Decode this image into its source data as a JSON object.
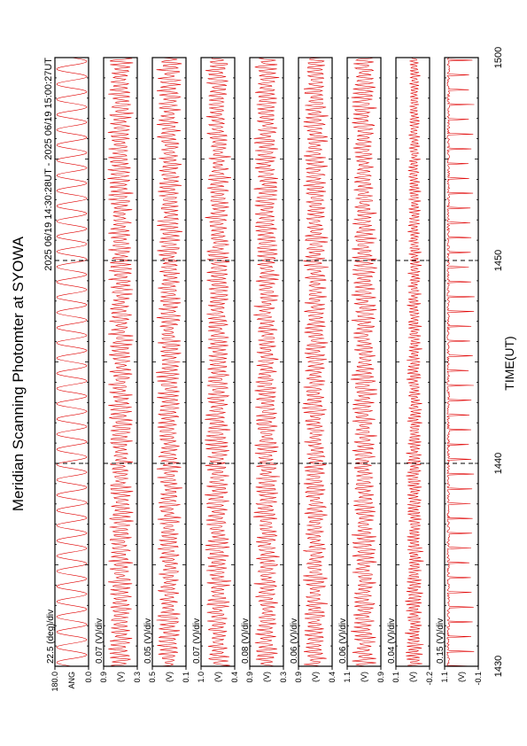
{
  "header": {
    "title": "Meridian Scanning Photomter at SYOWA",
    "time_range": "2025 06/19 14:30:28UT - 2025 06/19 15:00:27UT"
  },
  "time_axis": {
    "xlabel": "TIME(UT)",
    "xlim": [
      1430,
      1500
    ],
    "xticks": [
      1430,
      1440,
      1450,
      1500
    ]
  },
  "chart_data": [
    {
      "type": "line",
      "scale_label": "22.5 (deg)/div",
      "ylabel": "ANG",
      "ylim": [
        0,
        180
      ],
      "yticks": [
        {
          "value": 0,
          "label": "0.0"
        },
        {
          "value": 180,
          "label": "180.0"
        }
      ],
      "color": "#e00000"
    },
    {
      "type": "line",
      "scale_label": "0.07 (V)/div",
      "ylabel": "(V)",
      "ylim": [
        0.3,
        0.9
      ],
      "yticks": [
        0.3,
        0.9
      ],
      "color": "#e00000"
    },
    {
      "type": "line",
      "scale_label": "0.05 (V)/div",
      "ylabel": "(V)",
      "ylim": [
        0.1,
        0.5
      ],
      "yticks": [
        0.1,
        0.5
      ],
      "color": "#e00000"
    },
    {
      "type": "line",
      "scale_label": "0.07 (V)/div",
      "ylabel": "(V)",
      "ylim": [
        0.4,
        1.0
      ],
      "yticks": [
        0.4,
        {
          "value": 1,
          "label": "1.0"
        }
      ],
      "color": "#e00000"
    },
    {
      "type": "line",
      "scale_label": "0.08 (V)/div",
      "ylabel": "(V)",
      "ylim": [
        0.3,
        0.9
      ],
      "yticks": [
        0.3,
        0.9
      ],
      "color": "#e00000"
    },
    {
      "type": "line",
      "scale_label": "0.06 (V)/div",
      "ylabel": "(V)",
      "ylim": [
        0.4,
        0.9
      ],
      "yticks": [
        0.4,
        0.9
      ],
      "color": "#e00000"
    },
    {
      "type": "line",
      "scale_label": "0.06 (V)/div",
      "ylabel": "(V)",
      "ylim": [
        0.9,
        1.1
      ],
      "yticks": [
        0.9,
        1.1
      ],
      "color": "#e00000"
    },
    {
      "type": "line",
      "scale_label": "0.04 (V)/div",
      "ylabel": "(V)",
      "ylim": [
        -0.2,
        0.1
      ],
      "yticks": [
        -0.2,
        0.1
      ],
      "color": "#e00000"
    },
    {
      "type": "line",
      "scale_label": "0.15 (V)/div",
      "ylabel": "(V)",
      "ylim": [
        -0.1,
        1.1
      ],
      "yticks": [
        -0.1,
        1.1
      ],
      "color": "#e00000"
    }
  ]
}
